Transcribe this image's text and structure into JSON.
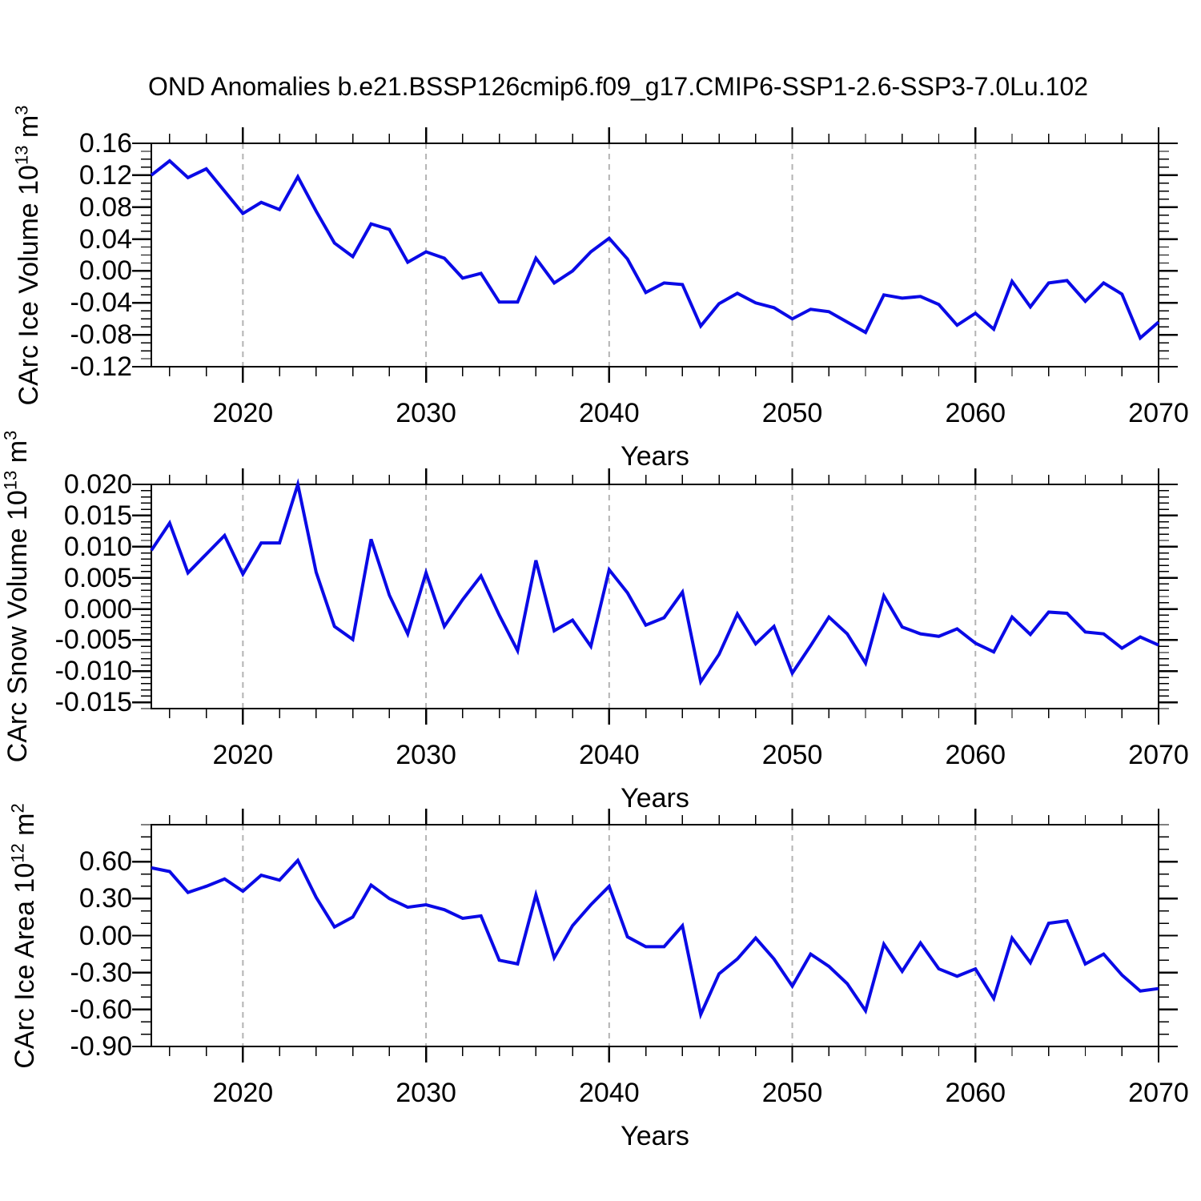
{
  "title": "OND Anomalies b.e21.BSSP126cmip6.f09_g17.CMIP6-SSP1-2.6-SSP3-7.0Lu.102",
  "axis": {
    "xlabel": "Years",
    "xtick_labels": [
      "2020",
      "2030",
      "2040",
      "2050",
      "2060",
      "2070"
    ],
    "xtick_values": [
      2020,
      2030,
      2040,
      2050,
      2060,
      2070
    ],
    "x_minor_step_years": 2,
    "xlim": [
      2015,
      2070
    ],
    "grid_decades": [
      2020,
      2030,
      2040,
      2050,
      2060
    ],
    "grid_style": "dashed-vertical"
  },
  "colors": {
    "line": "#0a0ae6",
    "grid": "#b3b3b3",
    "axis": "#000000",
    "text": "#000000",
    "background": "#ffffff"
  },
  "chart_data": [
    {
      "type": "line",
      "series_name": "CArc Ice Volume anomaly (OND)",
      "ylabel": {
        "prefix": "CArc Ice Volume 10",
        "exp": "13",
        "unit": " m",
        "unit_exp": "3"
      },
      "ytick_labels": [
        "0.16",
        "0.12",
        "0.08",
        "0.04",
        "0.00",
        "-0.04",
        "-0.08",
        "-0.12"
      ],
      "ytick_values": [
        0.16,
        0.12,
        0.08,
        0.04,
        0.0,
        -0.04,
        -0.08,
        -0.12
      ],
      "y_minor_step": 0.01,
      "ylim": [
        -0.12,
        0.16
      ],
      "x_start_year": 2015,
      "values": [
        0.12,
        0.138,
        0.117,
        0.128,
        0.1,
        0.072,
        0.086,
        0.077,
        0.118,
        0.075,
        0.035,
        0.018,
        0.059,
        0.052,
        0.011,
        0.024,
        0.016,
        -0.009,
        -0.003,
        -0.039,
        -0.039,
        0.016,
        -0.015,
        0.0,
        0.024,
        0.041,
        0.015,
        -0.027,
        -0.015,
        -0.017,
        -0.069,
        -0.041,
        -0.028,
        -0.04,
        -0.046,
        -0.06,
        -0.048,
        -0.051,
        -0.064,
        -0.077,
        -0.03,
        -0.034,
        -0.032,
        -0.042,
        -0.068,
        -0.053,
        -0.073,
        -0.013,
        -0.045,
        -0.015,
        -0.012,
        -0.038,
        -0.015,
        -0.029,
        -0.084,
        -0.064
      ]
    },
    {
      "type": "line",
      "series_name": "CArc Snow Volume anomaly (OND)",
      "ylabel": {
        "prefix": "CArc Snow Volume 10",
        "exp": "13",
        "unit": " m",
        "unit_exp": "3"
      },
      "ytick_labels": [
        "0.020",
        "0.015",
        "0.010",
        "0.005",
        "0.000",
        "-0.005",
        "-0.010",
        "-0.015"
      ],
      "ytick_values": [
        0.02,
        0.015,
        0.01,
        0.005,
        0.0,
        -0.005,
        -0.01,
        -0.015
      ],
      "y_minor_step": 0.001,
      "ylim": [
        -0.016,
        0.02
      ],
      "x_start_year": 2015,
      "values": [
        0.0094,
        0.0138,
        0.0058,
        0.0088,
        0.0118,
        0.0056,
        0.0106,
        0.0106,
        0.02,
        0.0059,
        -0.0028,
        -0.0049,
        0.0112,
        0.0022,
        -0.004,
        0.0058,
        -0.0028,
        0.0015,
        0.0053,
        -0.001,
        -0.0067,
        0.0078,
        -0.0035,
        -0.0018,
        -0.006,
        0.0063,
        0.0026,
        -0.0026,
        -0.0014,
        0.0027,
        -0.0117,
        -0.0073,
        -0.0008,
        -0.0056,
        -0.0028,
        -0.0103,
        -0.0059,
        -0.0013,
        -0.004,
        -0.0087,
        0.0021,
        -0.0029,
        -0.004,
        -0.0044,
        -0.0032,
        -0.0055,
        -0.0069,
        -0.0013,
        -0.0041,
        -0.0005,
        -0.0007,
        -0.0037,
        -0.004,
        -0.0063,
        -0.0045,
        -0.0058
      ]
    },
    {
      "type": "line",
      "series_name": "CArc Ice Area anomaly (OND)",
      "ylabel": {
        "prefix": "CArc Ice Area 10",
        "exp": "12",
        "unit": " m",
        "unit_exp": "2"
      },
      "ytick_labels": [
        "0.60",
        "0.30",
        "0.00",
        "-0.30",
        "-0.60",
        "-0.90"
      ],
      "ytick_values": [
        0.6,
        0.3,
        0.0,
        -0.3,
        -0.6,
        -0.9
      ],
      "y_minor_step": 0.1,
      "ylim": [
        -0.9,
        0.9
      ],
      "x_start_year": 2015,
      "values": [
        0.55,
        0.52,
        0.35,
        0.4,
        0.46,
        0.36,
        0.49,
        0.45,
        0.61,
        0.31,
        0.07,
        0.15,
        0.41,
        0.3,
        0.23,
        0.25,
        0.21,
        0.14,
        0.16,
        -0.2,
        -0.23,
        0.33,
        -0.18,
        0.08,
        0.25,
        0.4,
        -0.01,
        -0.09,
        -0.09,
        0.08,
        -0.64,
        -0.31,
        -0.19,
        -0.02,
        -0.19,
        -0.41,
        -0.15,
        -0.25,
        -0.39,
        -0.61,
        -0.07,
        -0.29,
        -0.06,
        -0.27,
        -0.33,
        -0.27,
        -0.51,
        -0.02,
        -0.22,
        0.1,
        0.12,
        -0.23,
        -0.15,
        -0.32,
        -0.45,
        -0.43
      ]
    }
  ]
}
